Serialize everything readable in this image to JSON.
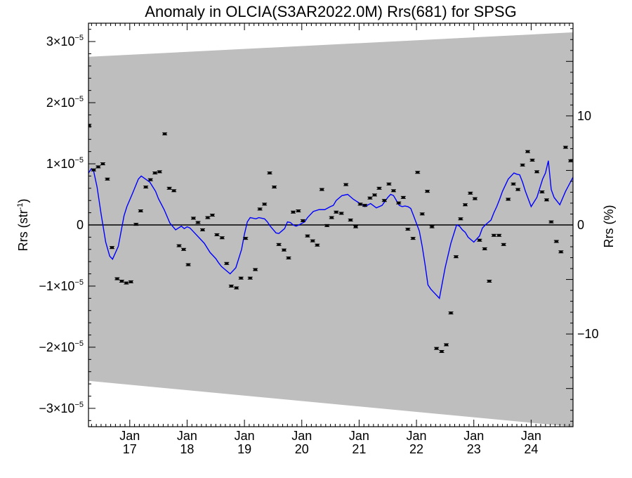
{
  "chart_data": {
    "type": "line",
    "title": "Anomaly in OLCIA(S3AR2022.0M) Rrs(681) for SPSG",
    "ylabel": {
      "base": "Rrs (str",
      "sup": "-1",
      "close": ")"
    },
    "y2label": "Rrs (%)",
    "xlim": [
      2016.28,
      2024.73
    ],
    "ylim": [
      -3.3e-05,
      3.3e-05
    ],
    "y2lim": [
      -18.5,
      18.5
    ],
    "x_ticks": [
      {
        "x": 2017,
        "month": "Jan",
        "year": "17"
      },
      {
        "x": 2018,
        "month": "Jan",
        "year": "18"
      },
      {
        "x": 2019,
        "month": "Jan",
        "year": "19"
      },
      {
        "x": 2020,
        "month": "Jan",
        "year": "20"
      },
      {
        "x": 2021,
        "month": "Jan",
        "year": "21"
      },
      {
        "x": 2022,
        "month": "Jan",
        "year": "22"
      },
      {
        "x": 2023,
        "month": "Jan",
        "year": "23"
      },
      {
        "x": 2024,
        "month": "Jan",
        "year": "24"
      }
    ],
    "y_ticks": [
      {
        "value": 3e-05,
        "mant": "3",
        "exp": "−5"
      },
      {
        "value": 2e-05,
        "mant": "2",
        "exp": "−5"
      },
      {
        "value": 1e-05,
        "mant": "1",
        "exp": "−5"
      },
      {
        "value": 0,
        "mant": "0",
        "exp": ""
      },
      {
        "value": -1e-05,
        "mant": "−1",
        "exp": "−5"
      },
      {
        "value": -2e-05,
        "mant": "−2",
        "exp": "−5"
      },
      {
        "value": -3e-05,
        "mant": "−3",
        "exp": "−5"
      }
    ],
    "y2_ticks": [
      {
        "value": 10,
        "label": "10"
      },
      {
        "value": 0,
        "label": "0"
      },
      {
        "value": -10,
        "label": "−10"
      }
    ],
    "grid": false,
    "colors": {
      "band": "#bebebe",
      "smooth": "#0000ff",
      "points": "#000000",
      "zero": "#000000"
    },
    "uncertainty_band": {
      "x": [
        2016.28,
        2024.73
      ],
      "upper": [
        2.75e-05,
        3.15e-05
      ],
      "lower": [
        -2.55e-05,
        -3.3e-05
      ]
    },
    "points": {
      "x": [
        2016.29,
        2016.37,
        2016.45,
        2016.53,
        2016.61,
        2016.69,
        2016.78,
        2016.86,
        2016.94,
        2017.02,
        2017.11,
        2017.19,
        2017.28,
        2017.36,
        2017.44,
        2017.52,
        2017.61,
        2017.69,
        2017.77,
        2017.86,
        2017.94,
        2018.02,
        2018.11,
        2018.19,
        2018.27,
        2018.36,
        2018.44,
        2018.52,
        2018.61,
        2018.69,
        2018.77,
        2018.86,
        2018.94,
        2019.02,
        2019.1,
        2019.19,
        2019.27,
        2019.35,
        2019.44,
        2019.52,
        2019.6,
        2019.69,
        2019.77,
        2019.85,
        2019.94,
        2020.02,
        2020.1,
        2020.19,
        2020.27,
        2020.35,
        2020.44,
        2020.52,
        2020.6,
        2020.69,
        2020.77,
        2020.85,
        2020.94,
        2021.02,
        2021.1,
        2021.19,
        2021.27,
        2021.35,
        2021.44,
        2021.52,
        2021.6,
        2021.69,
        2021.77,
        2021.85,
        2021.94,
        2022.02,
        2022.1,
        2022.19,
        2022.27,
        2022.35,
        2022.44,
        2022.52,
        2022.6,
        2022.69,
        2022.77,
        2022.85,
        2022.94,
        2023.02,
        2023.1,
        2023.19,
        2023.27,
        2023.35,
        2023.44,
        2023.52,
        2023.6,
        2023.69,
        2023.77,
        2023.85,
        2023.94,
        2024.02,
        2024.1,
        2024.19,
        2024.27,
        2024.35,
        2024.44,
        2024.52,
        2024.6,
        2024.69
      ],
      "y": [
        1.63e-05,
        9e-06,
        9.5e-06,
        1e-05,
        7.5e-06,
        -3.7e-06,
        -8.8e-06,
        -9.2e-06,
        -9.5e-06,
        -9.3e-06,
        1e-07,
        2.3e-06,
        6.2e-06,
        7.4e-06,
        8.5e-06,
        8.7e-06,
        1.49e-05,
        6e-06,
        5.6e-06,
        -3.4e-06,
        -4e-06,
        -6.5e-06,
        1.1e-06,
        4e-07,
        -8e-07,
        1.2e-06,
        1.6e-06,
        -1.6e-06,
        -2.1e-06,
        -6.3e-06,
        -1e-05,
        -1.03e-05,
        -8.7e-06,
        -2.2e-06,
        -8.7e-06,
        -7.3e-06,
        2.6e-06,
        3.4e-06,
        8.5e-06,
        6.2e-06,
        -3.2e-06,
        -4.1e-06,
        -5.4e-06,
        2.1e-06,
        2.3e-06,
        7e-07,
        -1.8e-06,
        -2.6e-06,
        -3.3e-06,
        5.8e-06,
        -1e-07,
        1.2e-06,
        2.1e-06,
        1.9e-06,
        6.6e-06,
        8e-07,
        -3e-07,
        3.4e-06,
        3.2e-06,
        4.4e-06,
        4.9e-06,
        6e-06,
        4e-06,
        6.7e-06,
        5.6e-06,
        3.6e-06,
        4.5e-06,
        -7e-07,
        -2.2e-06,
        8.6e-06,
        1.8e-06,
        5.5e-06,
        -3e-07,
        -2.02e-05,
        -2.07e-05,
        -1.96e-05,
        -1.44e-05,
        -5.2e-06,
        1e-06,
        3.3e-06,
        5.2e-06,
        4.3e-06,
        -2.5e-06,
        -3.9e-06,
        -9.2e-06,
        -1.7e-06,
        -1.7e-06,
        -3.2e-06,
        4.2e-06,
        6.7e-06,
        5.8e-06,
        9.8e-06,
        1.2e-05,
        1.06e-05,
        8.7e-06,
        5.4e-06,
        4.1e-06,
        5e-07,
        -2.7e-06,
        -4.4e-06,
        1.27e-05,
        1.05e-05
      ]
    },
    "smooth_line": {
      "x": [
        2016.28,
        2016.33,
        2016.37,
        2016.43,
        2016.5,
        2016.58,
        2016.65,
        2016.7,
        2016.8,
        2016.9,
        2016.95,
        2017.05,
        2017.15,
        2017.2,
        2017.35,
        2017.45,
        2017.5,
        2017.6,
        2017.7,
        2017.8,
        2017.9,
        2017.95,
        2018.0,
        2018.05,
        2018.1,
        2018.2,
        2018.3,
        2018.4,
        2018.5,
        2018.55,
        2018.6,
        2018.65,
        2018.75,
        2018.85,
        2018.95,
        2019.0,
        2019.05,
        2019.1,
        2019.2,
        2019.25,
        2019.35,
        2019.4,
        2019.45,
        2019.55,
        2019.6,
        2019.65,
        2019.7,
        2019.75,
        2019.8,
        2019.85,
        2019.9,
        2019.95,
        2020.05,
        2020.1,
        2020.2,
        2020.3,
        2020.4,
        2020.5,
        2020.55,
        2020.6,
        2020.7,
        2020.8,
        2020.9,
        2021.0,
        2021.1,
        2021.2,
        2021.3,
        2021.4,
        2021.5,
        2021.55,
        2021.6,
        2021.7,
        2021.75,
        2021.8,
        2021.85,
        2021.9,
        2021.95,
        2022.05,
        2022.1,
        2022.15,
        2022.2,
        2022.25,
        2022.3,
        2022.35,
        2022.4,
        2022.5,
        2022.6,
        2022.7,
        2022.75,
        2022.8,
        2022.85,
        2022.9,
        2023.0,
        2023.1,
        2023.15,
        2023.2,
        2023.3,
        2023.35,
        2023.4,
        2023.45,
        2023.5,
        2023.6,
        2023.7,
        2023.75,
        2023.8,
        2023.85,
        2023.9,
        2024.0,
        2024.1,
        2024.15,
        2024.2,
        2024.25,
        2024.3,
        2024.35,
        2024.4,
        2024.5,
        2024.6,
        2024.73
      ],
      "y": [
        8.5e-06,
        9.2e-06,
        8.8e-06,
        6.2e-06,
        1.8e-06,
        -2.8e-06,
        -5.1e-06,
        -5.6e-06,
        -3.5e-06,
        1.5e-06,
        3e-06,
        5.2e-06,
        7.5e-06,
        8e-06,
        7e-06,
        5.5e-06,
        4.3e-06,
        2.5e-06,
        3e-07,
        -8e-07,
        -2e-07,
        -6e-07,
        -3e-07,
        -5e-07,
        -1e-06,
        -2e-06,
        -3e-06,
        -4.5e-06,
        -5.5e-06,
        -6.2e-06,
        -6.8e-06,
        -7.2e-06,
        -8e-06,
        -7e-06,
        -4e-06,
        -1.5e-06,
        5e-07,
        1.2e-06,
        1e-06,
        1.2e-06,
        1e-06,
        5e-07,
        -2e-07,
        -1.3e-06,
        -1.4e-06,
        -1e-06,
        -6e-07,
        5e-07,
        4e-07,
        0.0,
        -2e-07,
        0.0,
        5e-07,
        1.2e-06,
        2.2e-06,
        2.5e-06,
        2.5e-06,
        3e-06,
        3.2e-06,
        4e-06,
        4.8e-06,
        5e-06,
        4.2e-06,
        3.6e-06,
        3e-06,
        3.5e-06,
        2.8e-06,
        3.2e-06,
        4.5e-06,
        5e-06,
        4.8e-06,
        3.2e-06,
        3e-06,
        3.1e-06,
        3e-06,
        2.7e-06,
        1.5e-06,
        -1e-06,
        -3.5e-06,
        -6.5e-06,
        -9.8e-06,
        -1.05e-05,
        -1.1e-05,
        -1.15e-05,
        -1.2e-05,
        -7e-06,
        -3e-06,
        0.0,
        -2e-07,
        -8e-07,
        -1.2e-06,
        -2e-06,
        -2.8e-06,
        -1.8e-06,
        -5e-07,
        0.0,
        8e-07,
        2e-06,
        3e-06,
        4.2e-06,
        5.5e-06,
        7.5e-06,
        8.5e-06,
        8.3e-06,
        8.2e-06,
        7e-06,
        5.5e-06,
        3e-06,
        4.5e-06,
        6e-06,
        7.5e-06,
        8.5e-06,
        1.05e-05,
        5.8e-06,
        4.5e-06,
        3.3e-06,
        5.5e-06,
        7.8e-06
      ]
    }
  }
}
